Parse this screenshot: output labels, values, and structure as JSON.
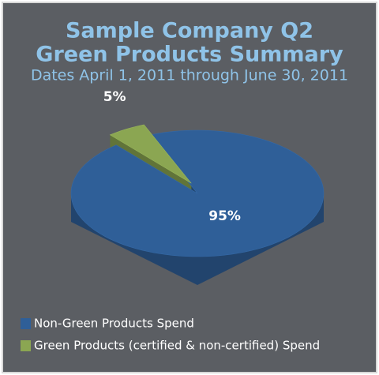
{
  "chart_data": {
    "type": "pie",
    "title": [
      "Sample Company Q2",
      "Green Products Summary"
    ],
    "subtitle": "Dates April 1, 2011 through June 30, 2011",
    "categories": [
      "Non-Green Products Spend",
      "Green Products (certified & non-certified) Spend"
    ],
    "values": [
      95,
      5
    ],
    "value_labels": [
      "95%",
      "5%"
    ],
    "colors": [
      "#2f5f98",
      "#8ba652"
    ],
    "legend": "bottom-left"
  }
}
